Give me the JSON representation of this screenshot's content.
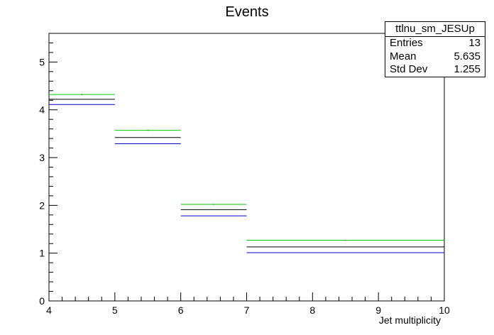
{
  "chart_data": {
    "type": "step",
    "title": "Events",
    "xlabel": "Jet multiplicity",
    "ylabel": "",
    "xlim": [
      4,
      10
    ],
    "ylim": [
      0,
      5.6
    ],
    "x_ticks": [
      "4",
      "5",
      "6",
      "7",
      "8",
      "9",
      "10"
    ],
    "y_ticks": [
      "0",
      "1",
      "2",
      "3",
      "4",
      "5"
    ],
    "bin_edges": [
      4,
      5,
      6,
      7,
      10
    ],
    "series": [
      {
        "color": "#00cc00",
        "values": [
          4.32,
          3.57,
          2.02,
          1.27
        ]
      },
      {
        "color": "#000000",
        "values": [
          4.22,
          3.42,
          1.91,
          1.13
        ]
      },
      {
        "color": "#0000cc",
        "values": [
          4.11,
          3.29,
          1.78,
          1.01
        ]
      }
    ]
  },
  "statbox": {
    "name": "ttlnu_sm_JESUp",
    "rows": [
      {
        "label": "Entries",
        "value": "13"
      },
      {
        "label": "Mean",
        "value": "5.635"
      },
      {
        "label": "Std Dev",
        "value": "1.255"
      }
    ]
  }
}
